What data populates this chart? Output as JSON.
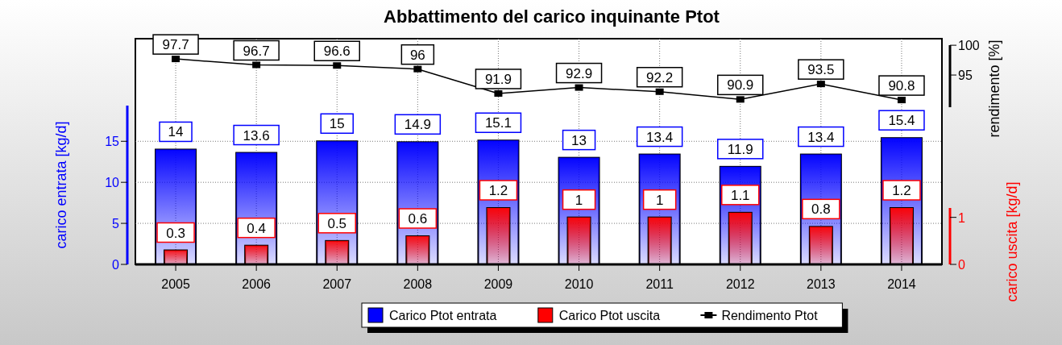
{
  "chart_data": {
    "type": "bar",
    "title": "Abbattimento del carico inquinante Ptot",
    "categories": [
      "2005",
      "2006",
      "2007",
      "2008",
      "2009",
      "2010",
      "2011",
      "2012",
      "2013",
      "2014"
    ],
    "series": [
      {
        "name": "Carico Ptot entrata",
        "color": "#0000ff",
        "values": [
          14,
          13.6,
          15,
          14.9,
          15.1,
          13,
          13.4,
          11.9,
          13.4,
          15.4
        ]
      },
      {
        "name": "Carico Ptot uscita",
        "color": "#ff0000",
        "axis": "y2",
        "values": [
          0.3,
          0.4,
          0.5,
          0.6,
          1.2,
          1,
          1,
          1.1,
          0.8,
          1.2
        ]
      },
      {
        "name": "Rendimento Ptot",
        "type": "line",
        "color": "#000000",
        "axis": "y3",
        "marker": "square",
        "values": [
          97.7,
          96.7,
          96.6,
          96,
          91.9,
          92.9,
          92.2,
          90.9,
          93.5,
          90.8
        ]
      }
    ],
    "ylabel": "carico entrata [kg/d]",
    "y2label": "carico uscita [kg/d]",
    "y3label": "rendimento [%]",
    "ylim": [
      0,
      27.5
    ],
    "yticks": [
      0,
      5,
      10,
      15
    ],
    "y2lim": [
      0,
      4.8
    ],
    "y2ticks": [
      0,
      1
    ],
    "y3lim": [
      63.2,
      101.1
    ],
    "y3ticks": [
      95,
      100
    ],
    "grid": true,
    "legend": "bottom",
    "data_labels": true
  }
}
